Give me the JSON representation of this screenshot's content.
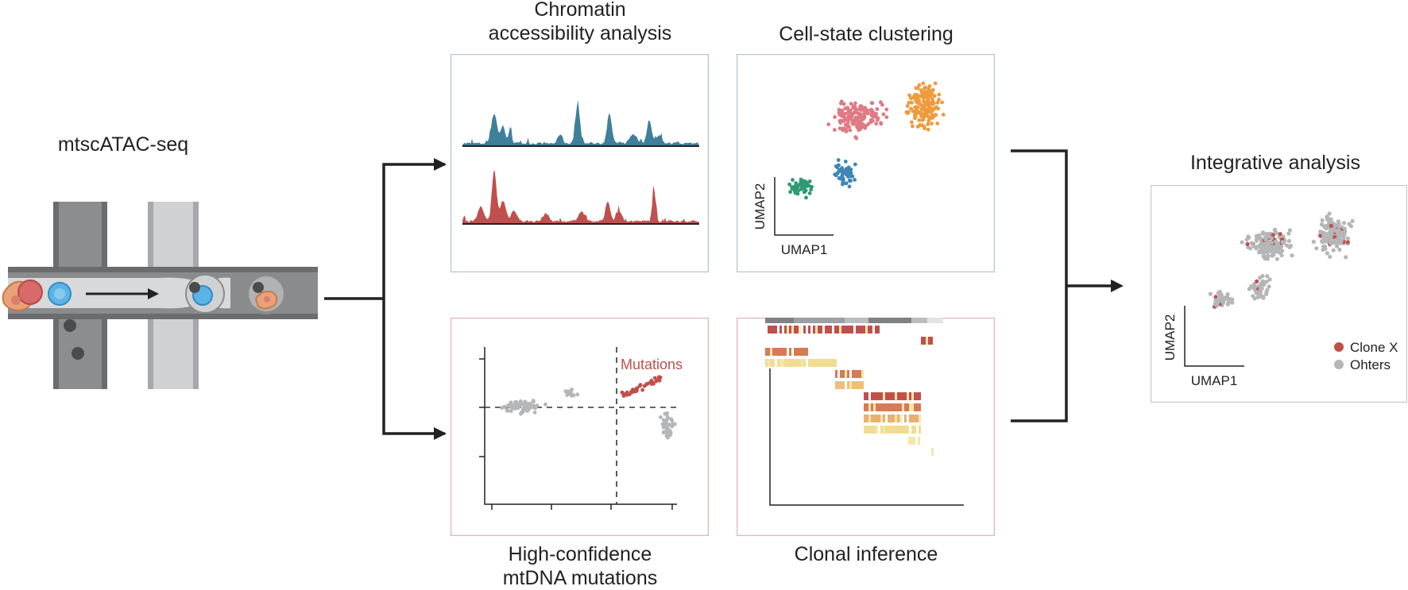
{
  "labels": {
    "mtscatac": "mtscATAC-seq",
    "chromatin": "Chromatin\naccessibility analysis",
    "clustering": "Cell-state clustering",
    "mutations": "High-confidence\nmtDNA mutations",
    "clonal": "Clonal inference",
    "integrative": "Integrative analysis"
  },
  "cluster_panel": {
    "xlabel": "UMAP1",
    "ylabel": "UMAP2"
  },
  "mutation_panel": {
    "annotation": "Mutations"
  },
  "integrative_panel": {
    "xlabel": "UMAP1",
    "ylabel": "UMAP2",
    "legend": [
      {
        "label": "Clone X",
        "color": "#c0504d"
      },
      {
        "label": "Ohters",
        "color": "#b4b6b8"
      }
    ]
  },
  "colors": {
    "peak_blue": "#3e7f9c",
    "peak_red": "#c0504d",
    "cluster_pink": "#e07a84",
    "cluster_orange": "#ef9a3d",
    "cluster_blue": "#3f86b5",
    "cluster_green": "#2f9a72",
    "gray_points": "#b4b6b8",
    "mutation_red": "#c0504d",
    "panel_border_top": "#b7c3d8",
    "panel_border_bottom": "#e4b5b5"
  }
}
